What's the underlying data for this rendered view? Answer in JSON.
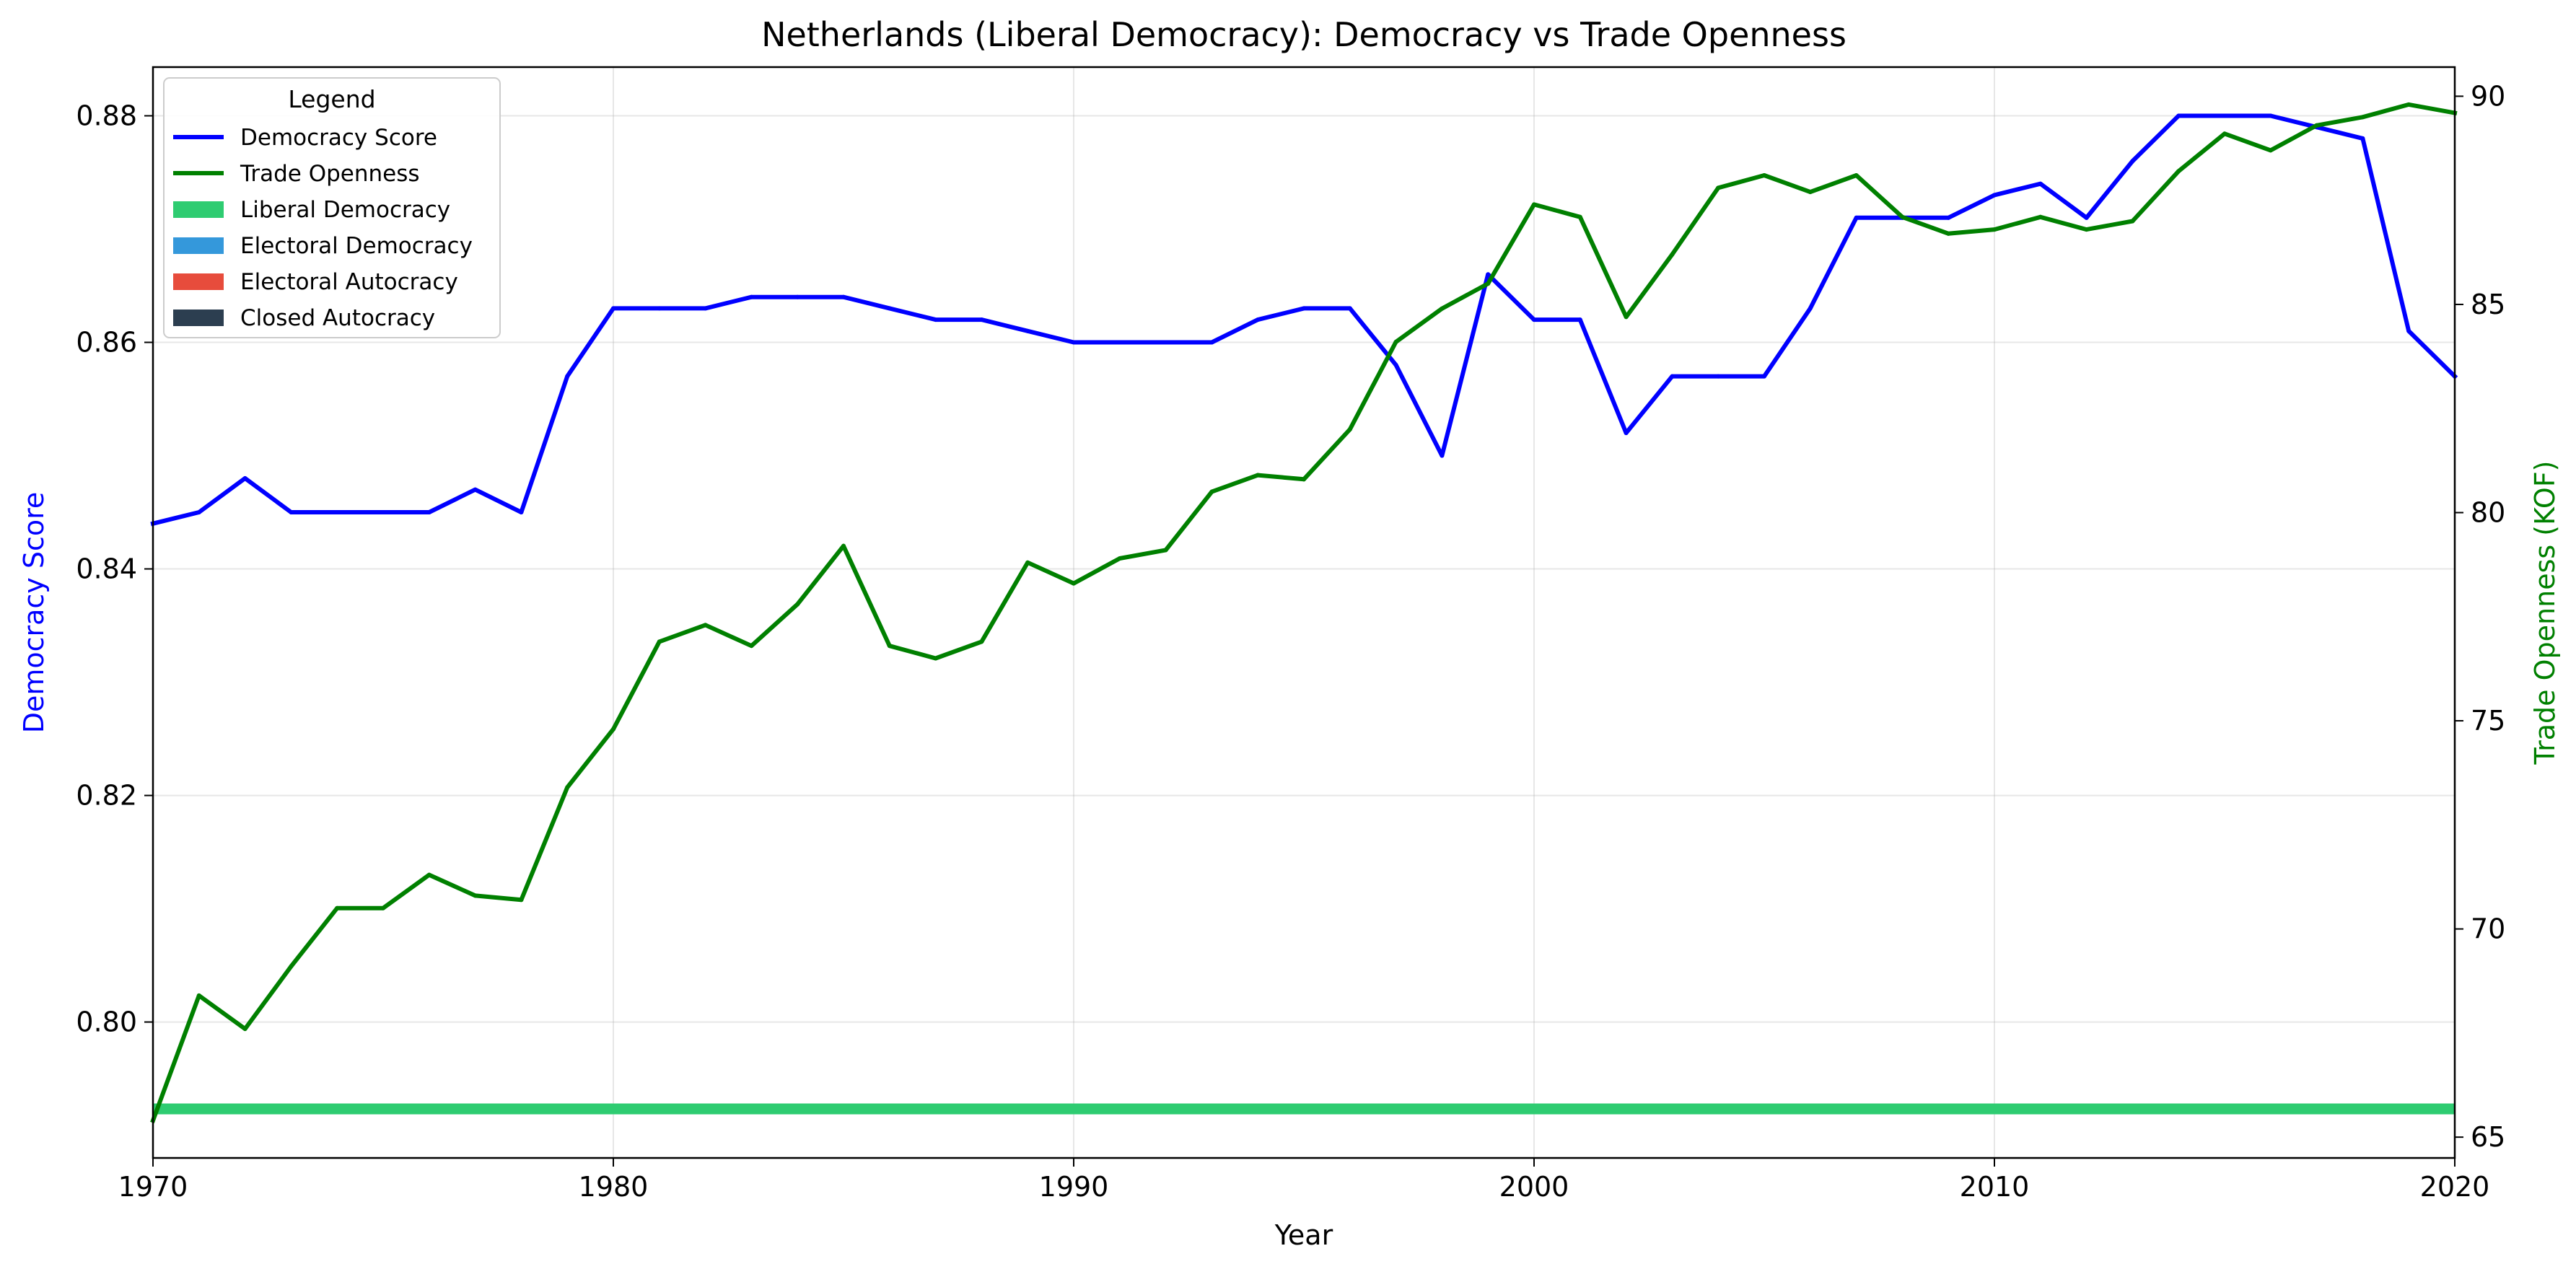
{
  "chart_data": {
    "type": "line",
    "title": "Netherlands (Liberal Democracy): Democracy vs Trade Openness",
    "xlabel": "Year",
    "ylabel_left": "Democracy Score",
    "ylabel_right": "Trade Openness (KOF)",
    "xlim": [
      1970,
      2020
    ],
    "ylim_left": [
      0.788,
      0.8843
    ],
    "ylim_right": [
      64.5,
      90.7
    ],
    "x_ticks": [
      1970,
      1980,
      1990,
      2000,
      2010,
      2020
    ],
    "y_ticks_left": [
      0.8,
      0.82,
      0.84,
      0.86,
      0.88
    ],
    "y_tick_labels_left": [
      "0.80",
      "0.82",
      "0.84",
      "0.86",
      "0.88"
    ],
    "y_ticks_right": [
      65,
      70,
      75,
      80,
      85,
      90
    ],
    "grid": true,
    "legend_position": "upper-left",
    "x": [
      1970,
      1971,
      1972,
      1973,
      1974,
      1975,
      1976,
      1977,
      1978,
      1979,
      1980,
      1981,
      1982,
      1983,
      1984,
      1985,
      1986,
      1987,
      1988,
      1989,
      1990,
      1991,
      1992,
      1993,
      1994,
      1995,
      1996,
      1997,
      1998,
      1999,
      2000,
      2001,
      2002,
      2003,
      2004,
      2005,
      2006,
      2007,
      2008,
      2009,
      2010,
      2011,
      2012,
      2013,
      2014,
      2015,
      2016,
      2017,
      2018,
      2019,
      2020
    ],
    "series": [
      {
        "name": "Democracy Score",
        "axis": "left",
        "color": "#0000ff",
        "values": [
          0.844,
          0.845,
          0.848,
          0.845,
          0.845,
          0.845,
          0.845,
          0.847,
          0.845,
          0.857,
          0.863,
          0.863,
          0.863,
          0.864,
          0.864,
          0.864,
          0.863,
          0.862,
          0.862,
          0.861,
          0.86,
          0.86,
          0.86,
          0.86,
          0.862,
          0.863,
          0.863,
          0.858,
          0.85,
          0.866,
          0.862,
          0.862,
          0.852,
          0.857,
          0.857,
          0.857,
          0.863,
          0.871,
          0.871,
          0.871,
          0.873,
          0.874,
          0.871,
          0.876,
          0.88,
          0.88,
          0.88,
          0.879,
          0.878,
          0.861,
          0.857
        ]
      },
      {
        "name": "Trade Openness",
        "axis": "right",
        "color": "#008000",
        "values": [
          65.4,
          68.4,
          67.6,
          69.1,
          70.5,
          70.5,
          71.3,
          70.8,
          70.7,
          73.4,
          74.8,
          76.9,
          77.3,
          76.8,
          77.8,
          79.2,
          76.8,
          76.5,
          76.9,
          78.8,
          78.3,
          78.9,
          79.1,
          80.5,
          80.9,
          80.8,
          82.0,
          84.1,
          84.9,
          85.5,
          87.4,
          87.1,
          84.7,
          86.2,
          87.8,
          88.1,
          87.7,
          88.1,
          87.1,
          86.7,
          86.8,
          87.1,
          86.8,
          87.0,
          88.2,
          89.1,
          88.7,
          89.3,
          89.5,
          89.8,
          89.6
        ]
      }
    ],
    "regime_band": {
      "name": "Liberal Democracy",
      "color": "#2ecc71",
      "from": 1970,
      "to": 2020
    },
    "legend": {
      "title": "Legend",
      "entries": [
        {
          "label": "Democracy Score",
          "kind": "line",
          "color": "#0000ff"
        },
        {
          "label": "Trade Openness",
          "kind": "line",
          "color": "#008000"
        },
        {
          "label": "Liberal Democracy",
          "kind": "patch",
          "color": "#2ecc71"
        },
        {
          "label": "Electoral Democracy",
          "kind": "patch",
          "color": "#3498db"
        },
        {
          "label": "Electoral Autocracy",
          "kind": "patch",
          "color": "#e74c3c"
        },
        {
          "label": "Closed Autocracy",
          "kind": "patch",
          "color": "#2c3e50"
        }
      ]
    }
  }
}
